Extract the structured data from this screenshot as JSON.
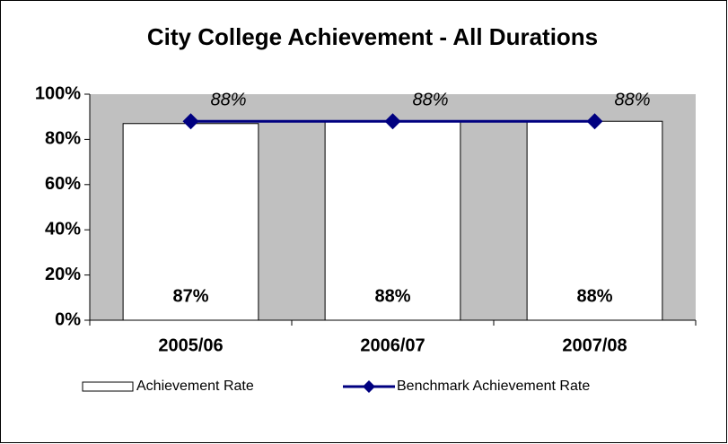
{
  "chart_data": {
    "type": "bar",
    "title": "City College Achievement - All Durations",
    "categories": [
      "2005/06",
      "2006/07",
      "2007/08"
    ],
    "series": [
      {
        "name": "Achievement Rate",
        "type": "bar",
        "color": "#ffffff",
        "values": [
          87,
          88,
          88
        ],
        "value_labels": [
          "87%",
          "88%",
          "88%"
        ]
      },
      {
        "name": "Benchmark Achievement Rate",
        "type": "line",
        "color": "#000080",
        "values": [
          88,
          88,
          88
        ],
        "value_labels": [
          "88%",
          "88%",
          "88%"
        ]
      }
    ],
    "ylim": [
      0,
      100
    ],
    "yticks": [
      {
        "value": 0,
        "label": "0%"
      },
      {
        "value": 20,
        "label": "20%"
      },
      {
        "value": 40,
        "label": "40%"
      },
      {
        "value": 60,
        "label": "60%"
      },
      {
        "value": 80,
        "label": "80%"
      },
      {
        "value": 100,
        "label": "100%"
      }
    ],
    "plot_background": "#c0c0c0",
    "legend": "bottom"
  }
}
